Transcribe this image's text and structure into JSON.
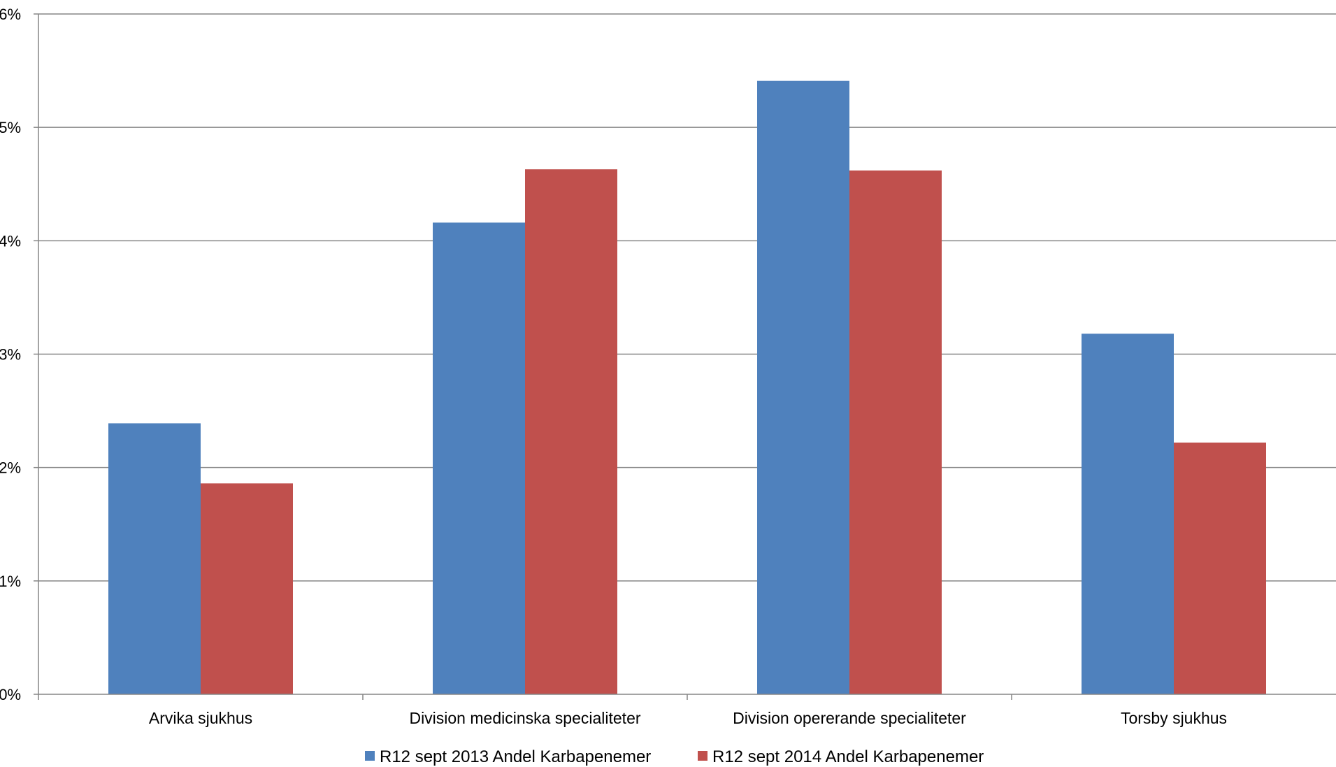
{
  "chart_data": {
    "type": "bar",
    "categories": [
      "Arvika sjukhus",
      "Division medicinska specialiteter",
      "Division opererande specialiteter",
      "Torsby sjukhus"
    ],
    "series": [
      {
        "name": "R12 sept 2013 Andel Karbapenemer",
        "color": "#4F81BD",
        "values": [
          2.39,
          4.16,
          5.41,
          3.18
        ]
      },
      {
        "name": "R12 sept 2014 Andel Karbapenemer",
        "color": "#C0504D",
        "values": [
          1.86,
          4.63,
          4.62,
          2.22
        ]
      }
    ],
    "yticks": [
      "0%",
      "1%",
      "2%",
      "3%",
      "4%",
      "5%",
      "6%"
    ],
    "ylim": [
      0,
      6
    ],
    "title": "",
    "xlabel": "",
    "ylabel": "",
    "grid": true,
    "legend_position": "bottom"
  }
}
